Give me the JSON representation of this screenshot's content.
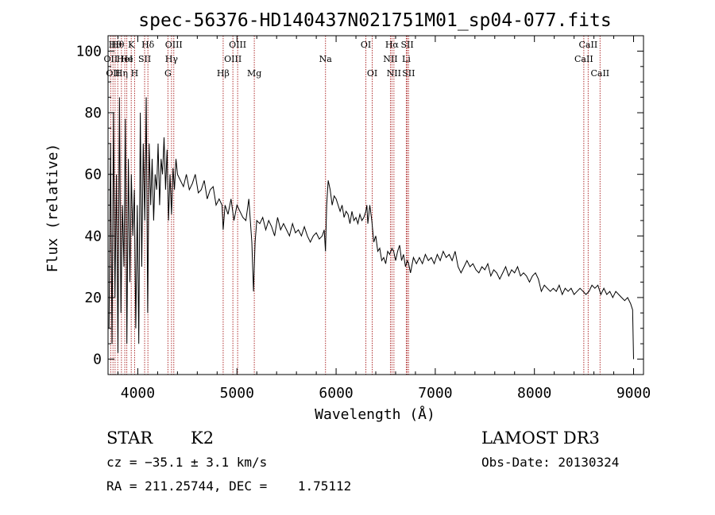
{
  "chart_data": {
    "type": "line",
    "title": "spec-56376-HD140437N021751M01_sp04-077.fits",
    "xlabel": "Wavelength (Å)",
    "ylabel": "Flux (relative)",
    "xlim": [
      3700,
      9100
    ],
    "ylim": [
      -5,
      105
    ],
    "xticks": [
      4000,
      5000,
      6000,
      7000,
      8000,
      9000
    ],
    "yticks": [
      0,
      20,
      40,
      60,
      80,
      100
    ],
    "grid": false,
    "line_color": "#000000",
    "marker_color": "#b03030",
    "series": [
      {
        "x": [
          3710,
          3725,
          3740,
          3755,
          3770,
          3785,
          3800,
          3815,
          3830,
          3845,
          3860,
          3875,
          3890,
          3905,
          3920,
          3935,
          3950,
          3965,
          3980,
          3995,
          4010,
          4025,
          4040,
          4055,
          4070,
          4085,
          4100,
          4115,
          4130,
          4145,
          4160,
          4175,
          4190,
          4205,
          4220,
          4235,
          4250,
          4265,
          4280,
          4295,
          4310,
          4325,
          4340,
          4355,
          4370,
          4385,
          4400,
          4430,
          4460,
          4490,
          4520,
          4550,
          4580,
          4610,
          4640,
          4670,
          4700,
          4730,
          4760,
          4790,
          4820,
          4850,
          4861,
          4880,
          4910,
          4940,
          4970,
          5000,
          5030,
          5060,
          5090,
          5120,
          5150,
          5167,
          5183,
          5200,
          5230,
          5260,
          5290,
          5320,
          5350,
          5380,
          5410,
          5440,
          5470,
          5500,
          5530,
          5560,
          5590,
          5620,
          5650,
          5680,
          5710,
          5740,
          5770,
          5800,
          5830,
          5860,
          5880,
          5893,
          5905,
          5920,
          5940,
          5960,
          5980,
          6000,
          6020,
          6040,
          6060,
          6080,
          6100,
          6120,
          6140,
          6160,
          6180,
          6200,
          6220,
          6240,
          6260,
          6280,
          6300,
          6310,
          6320,
          6340,
          6360,
          6380,
          6400,
          6420,
          6440,
          6460,
          6480,
          6500,
          6520,
          6540,
          6563,
          6580,
          6600,
          6620,
          6640,
          6660,
          6680,
          6700,
          6717,
          6731,
          6750,
          6780,
          6810,
          6840,
          6870,
          6900,
          6930,
          6960,
          6990,
          7020,
          7050,
          7080,
          7110,
          7140,
          7170,
          7200,
          7230,
          7260,
          7290,
          7320,
          7350,
          7380,
          7410,
          7440,
          7470,
          7500,
          7530,
          7560,
          7590,
          7620,
          7650,
          7680,
          7710,
          7740,
          7770,
          7800,
          7830,
          7860,
          7890,
          7920,
          7950,
          7980,
          8010,
          8040,
          8070,
          8100,
          8130,
          8160,
          8190,
          8220,
          8250,
          8280,
          8310,
          8340,
          8370,
          8400,
          8430,
          8460,
          8490,
          8520,
          8550,
          8580,
          8610,
          8640,
          8670,
          8700,
          8730,
          8760,
          8790,
          8820,
          8850,
          8880,
          8910,
          8940,
          8970,
          8990,
          9000
        ],
        "y": [
          10,
          70,
          5,
          80,
          20,
          60,
          2,
          85,
          15,
          50,
          30,
          78,
          5,
          65,
          25,
          60,
          40,
          55,
          10,
          50,
          5,
          80,
          30,
          70,
          45,
          85,
          15,
          70,
          50,
          65,
          45,
          60,
          55,
          70,
          50,
          65,
          60,
          72,
          55,
          68,
          45,
          60,
          47,
          62,
          55,
          65,
          60,
          58,
          56,
          60,
          55,
          57,
          60,
          54,
          55,
          58,
          52,
          55,
          56,
          50,
          52,
          50,
          42,
          50,
          47,
          52,
          45,
          50,
          48,
          46,
          45,
          52,
          38,
          22,
          38,
          45,
          44,
          46,
          42,
          45,
          43,
          40,
          46,
          42,
          44,
          42,
          40,
          44,
          41,
          42,
          40,
          43,
          40,
          38,
          40,
          41,
          39,
          40,
          42,
          35,
          50,
          58,
          55,
          50,
          53,
          52,
          50,
          48,
          50,
          46,
          48,
          47,
          44,
          48,
          45,
          46,
          44,
          47,
          45,
          46,
          48,
          50,
          44,
          50,
          45,
          38,
          40,
          35,
          36,
          32,
          33,
          31,
          35,
          34,
          36,
          35,
          32,
          35,
          37,
          32,
          34,
          30,
          32,
          31,
          28,
          33,
          31,
          33,
          31,
          34,
          32,
          33,
          31,
          34,
          32,
          35,
          33,
          34,
          32,
          35,
          30,
          28,
          30,
          32,
          30,
          31,
          29,
          28,
          30,
          29,
          31,
          27,
          29,
          28,
          26,
          28,
          30,
          27,
          29,
          28,
          30,
          27,
          28,
          27,
          25,
          27,
          28,
          26,
          22,
          24,
          23,
          22,
          23,
          22,
          24,
          21,
          23,
          22,
          23,
          21,
          22,
          23,
          22,
          21,
          22,
          24,
          23,
          24,
          21,
          23,
          21,
          22,
          20,
          22,
          21,
          20,
          19,
          20,
          18,
          16,
          0
        ]
      }
    ],
    "line_markers": [
      {
        "wl": 3727,
        "row": 1,
        "label": "OII"
      },
      {
        "wl": 3750,
        "row": 2,
        "label": "OII"
      },
      {
        "wl": 3771,
        "row": 0,
        "label": "Hθ"
      },
      {
        "wl": 3798,
        "row": 0,
        "label": "Hθ"
      },
      {
        "wl": 3835,
        "row": 2,
        "label": "Hη"
      },
      {
        "wl": 3869,
        "row": 1,
        "label": "HeI"
      },
      {
        "wl": 3889,
        "row": 1,
        "label": "He"
      },
      {
        "wl": 3934,
        "row": 0,
        "label": "K"
      },
      {
        "wl": 3968,
        "row": 2,
        "label": "H"
      },
      {
        "wl": 4069,
        "row": 1,
        "label": "SII"
      },
      {
        "wl": 4102,
        "row": 0,
        "label": "Hδ"
      },
      {
        "wl": 4304,
        "row": 2,
        "label": "G"
      },
      {
        "wl": 4340,
        "row": 1,
        "label": "Hγ"
      },
      {
        "wl": 4363,
        "row": 0,
        "label": "OIII"
      },
      {
        "wl": 4861,
        "row": 2,
        "label": "Hβ"
      },
      {
        "wl": 4959,
        "row": 1,
        "label": "OIII"
      },
      {
        "wl": 5007,
        "row": 0,
        "label": "OIII"
      },
      {
        "wl": 5175,
        "row": 2,
        "label": "Mg"
      },
      {
        "wl": 5893,
        "row": 1,
        "label": "Na"
      },
      {
        "wl": 6300,
        "row": 0,
        "label": "OI"
      },
      {
        "wl": 6364,
        "row": 2,
        "label": "OI"
      },
      {
        "wl": 6548,
        "row": 1,
        "label": "NII"
      },
      {
        "wl": 6563,
        "row": 0,
        "label": "Hα"
      },
      {
        "wl": 6583,
        "row": 2,
        "label": "NII"
      },
      {
        "wl": 6708,
        "row": 1,
        "label": "Li"
      },
      {
        "wl": 6717,
        "row": 0,
        "label": "SII"
      },
      {
        "wl": 6731,
        "row": 2,
        "label": "SII"
      },
      {
        "wl": 8498,
        "row": 1,
        "label": "CaII"
      },
      {
        "wl": 8542,
        "row": 0,
        "label": "CaII"
      },
      {
        "wl": 8662,
        "row": 2,
        "label": "CaII"
      }
    ]
  },
  "info": {
    "object_type": "STAR",
    "subclass": "K2",
    "survey": "LAMOST DR3",
    "cz": "cz = −35.1 ± 3.1 km/s",
    "obs_date": "Obs-Date: 20130324",
    "radec": "RA = 211.25744, DEC =    1.75112"
  }
}
